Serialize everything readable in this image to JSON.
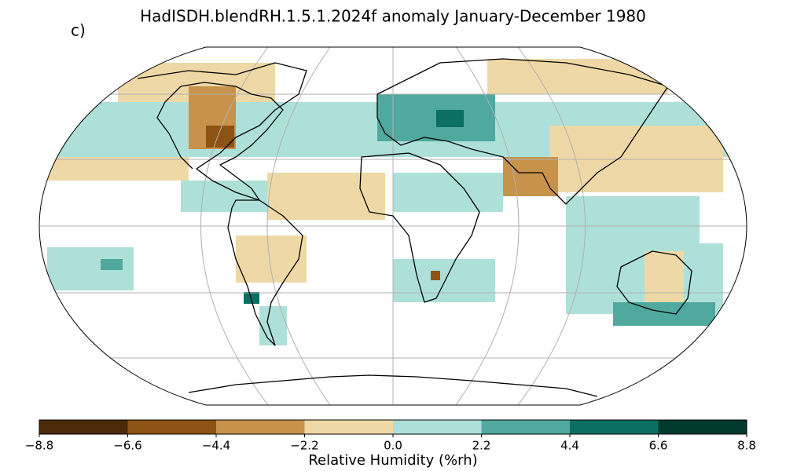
{
  "title": "HadISDH.blendRH.1.5.1.2024f anomaly January-December 1980",
  "panel_label": "c)",
  "colorbar": {
    "label": "Relative Humidity (%rh)",
    "ticks": [
      {
        "value": -8.8,
        "label": "−8.8"
      },
      {
        "value": -6.6,
        "label": "−6.6"
      },
      {
        "value": -4.4,
        "label": "−4.4"
      },
      {
        "value": -2.2,
        "label": "−2.2"
      },
      {
        "value": 0,
        "label": "0.0"
      },
      2.2,
      4.4,
      6.6,
      8.8
    ],
    "colors": [
      "#4b2b07",
      "#8c5315",
      "#c7924a",
      "#eed9a6",
      "#ade0d9",
      "#4fa99e",
      "#0b6f63",
      "#003a2f"
    ]
  }
}
